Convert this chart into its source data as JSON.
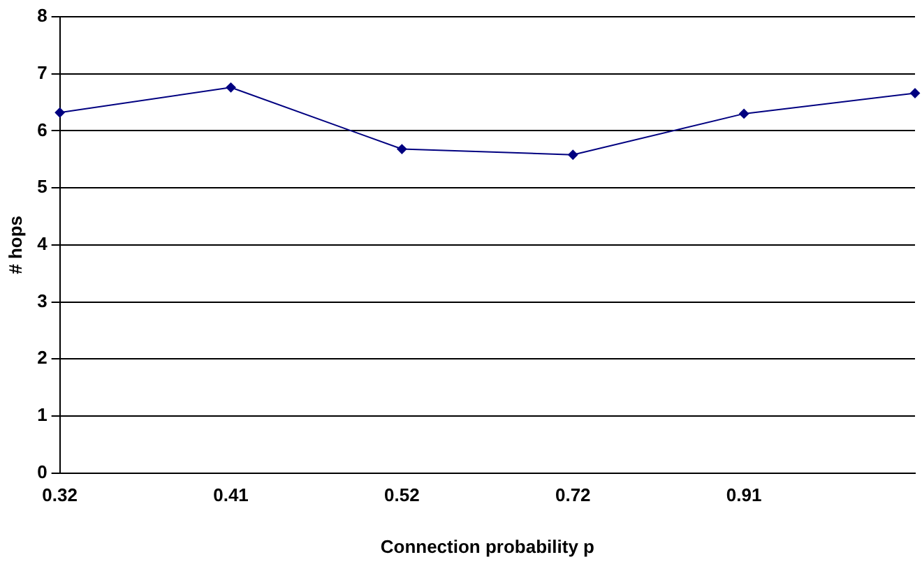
{
  "chart_data": {
    "type": "line",
    "xlabel": "Connection probability p",
    "ylabel": "# hops",
    "categories": [
      "0.32",
      "0.41",
      "0.52",
      "0.72",
      "0.91",
      null
    ],
    "series": [
      {
        "color": "#000080",
        "values": [
          6.32,
          6.76,
          5.68,
          5.58,
          6.3,
          6.66
        ]
      }
    ],
    "ylim": [
      0,
      8
    ],
    "yticks": [
      0,
      1,
      2,
      3,
      4,
      5,
      6,
      7,
      8
    ],
    "grid": "y",
    "legend": false,
    "marker": "diamond",
    "line_style": "solid"
  }
}
